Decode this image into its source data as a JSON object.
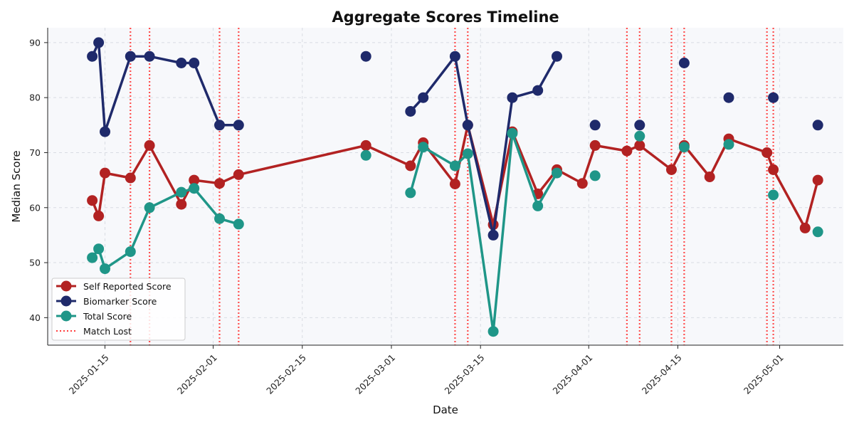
{
  "chart_data": {
    "type": "line",
    "title": "Aggregate Scores Timeline",
    "xlabel": "Date",
    "ylabel": "Median Score",
    "x_range": [
      "2025-01-06",
      "2025-05-11"
    ],
    "ylim": [
      35,
      92.7
    ],
    "x_ticks": [
      "2025-01-15",
      "2025-02-01",
      "2025-02-15",
      "2025-03-01",
      "2025-03-15",
      "2025-04-01",
      "2025-04-15",
      "2025-05-01"
    ],
    "y_ticks": [
      40,
      50,
      60,
      70,
      80,
      90
    ],
    "grid": true,
    "legend_position": "lower-left",
    "series": [
      {
        "name": "Self Reported Score",
        "color": "#b22222",
        "points": [
          [
            "2025-01-13",
            61.3
          ],
          [
            "2025-01-14",
            58.5
          ],
          [
            "2025-01-15",
            66.3
          ],
          [
            "2025-01-19",
            65.4
          ],
          [
            "2025-01-22",
            71.3
          ],
          [
            "2025-01-27",
            60.6
          ],
          [
            "2025-01-29",
            65.0
          ],
          [
            "2025-02-02",
            64.4
          ],
          [
            "2025-02-05",
            66.0
          ],
          [
            "2025-02-25",
            71.3
          ],
          [
            "2025-03-04",
            67.6
          ],
          [
            "2025-03-06",
            71.8
          ],
          [
            "2025-03-11",
            64.3
          ],
          [
            "2025-03-13",
            75.0
          ],
          [
            "2025-03-17",
            56.9
          ],
          [
            "2025-03-20",
            73.8
          ],
          [
            "2025-03-24",
            62.5
          ],
          [
            "2025-03-27",
            66.9
          ],
          [
            "2025-03-31",
            64.4
          ],
          [
            "2025-04-02",
            71.3
          ],
          [
            "2025-04-07",
            70.3
          ],
          [
            "2025-04-09",
            71.3
          ],
          [
            "2025-04-14",
            66.9
          ],
          [
            "2025-04-16",
            71.3
          ],
          [
            "2025-04-20",
            65.6
          ],
          [
            "2025-04-23",
            72.5
          ],
          [
            "2025-04-29",
            70.0
          ],
          [
            "2025-04-30",
            66.9
          ],
          [
            "2025-05-05",
            56.3
          ],
          [
            "2025-05-07",
            65.0
          ]
        ]
      },
      {
        "name": "Biomarker Score",
        "color": "#1f2a6b",
        "points": [
          [
            "2025-01-13",
            87.5
          ],
          [
            "2025-01-14",
            90.0
          ],
          [
            "2025-01-15",
            73.8
          ],
          [
            "2025-01-19",
            87.5
          ],
          [
            "2025-01-22",
            87.5
          ],
          [
            "2025-01-27",
            86.3
          ],
          [
            "2025-01-29",
            86.3
          ],
          [
            "2025-02-02",
            75.0
          ],
          [
            "2025-02-05",
            75.0
          ],
          [
            "2025-02-25",
            87.5
          ],
          [
            "2025-03-04",
            77.5
          ],
          [
            "2025-03-06",
            80.0
          ],
          [
            "2025-03-11",
            87.5
          ],
          [
            "2025-03-13",
            75.0
          ],
          [
            "2025-03-17",
            55.0
          ],
          [
            "2025-03-20",
            80.0
          ],
          [
            "2025-03-24",
            81.3
          ],
          [
            "2025-03-27",
            87.5
          ],
          [
            "2025-04-02",
            75.0
          ],
          [
            "2025-04-09",
            75.0
          ],
          [
            "2025-04-16",
            86.3
          ],
          [
            "2025-04-23",
            80.0
          ],
          [
            "2025-04-30",
            80.0
          ],
          [
            "2025-05-07",
            75.0
          ]
        ]
      },
      {
        "name": "Total Score",
        "color": "#1f9688",
        "points": [
          [
            "2025-01-13",
            50.9
          ],
          [
            "2025-01-14",
            52.5
          ],
          [
            "2025-01-15",
            48.9
          ],
          [
            "2025-01-19",
            52.0
          ],
          [
            "2025-01-22",
            60.0
          ],
          [
            "2025-01-27",
            62.8
          ],
          [
            "2025-01-29",
            63.5
          ],
          [
            "2025-02-02",
            58.0
          ],
          [
            "2025-02-05",
            57.0
          ],
          [
            "2025-02-25",
            69.5
          ],
          [
            "2025-03-04",
            62.7
          ],
          [
            "2025-03-06",
            71.0
          ],
          [
            "2025-03-11",
            67.6
          ],
          [
            "2025-03-13",
            69.8
          ],
          [
            "2025-03-17",
            37.5
          ],
          [
            "2025-03-20",
            73.5
          ],
          [
            "2025-03-24",
            60.3
          ],
          [
            "2025-03-27",
            66.3
          ],
          [
            "2025-04-02",
            65.8
          ],
          [
            "2025-04-09",
            73.0
          ],
          [
            "2025-04-16",
            71.0
          ],
          [
            "2025-04-23",
            71.5
          ],
          [
            "2025-04-30",
            62.3
          ],
          [
            "2025-05-07",
            55.6
          ]
        ]
      }
    ],
    "events": {
      "name": "Match Lost",
      "color": "#ff3b3b",
      "dates": [
        "2025-01-19",
        "2025-01-22",
        "2025-02-02",
        "2025-02-05",
        "2025-03-11",
        "2025-03-13",
        "2025-04-07",
        "2025-04-09",
        "2025-04-14",
        "2025-04-16",
        "2025-04-29",
        "2025-04-30"
      ]
    }
  }
}
